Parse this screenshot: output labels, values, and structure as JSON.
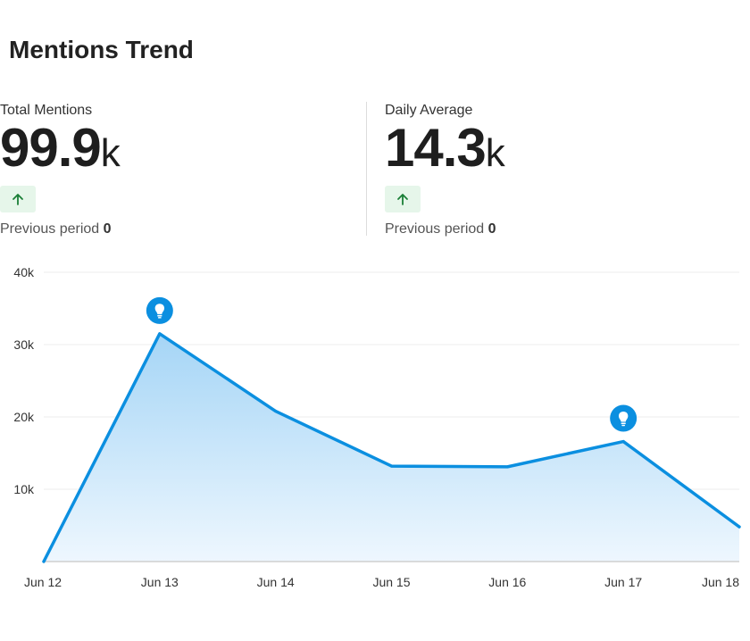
{
  "header": {
    "title": "Mentions Trend"
  },
  "stats": [
    {
      "label": "Total Mentions",
      "value": "99.9",
      "unit": "k",
      "trend_icon": "arrow-up-icon",
      "previous_label": "Previous period",
      "previous_value": "0"
    },
    {
      "label": "Daily Average",
      "value": "14.3",
      "unit": "k",
      "trend_icon": "arrow-up-icon",
      "previous_label": "Previous period",
      "previous_value": "0"
    }
  ],
  "colors": {
    "line": "#0b8fe0",
    "area_top": "#a5d5f6",
    "area_bottom": "#eef7fe",
    "trend_bg": "#e6f6ea",
    "trend_arrow": "#1a7f37"
  },
  "chart_data": {
    "type": "area",
    "x": [
      "Jun 12",
      "Jun 13",
      "Jun 14",
      "Jun 15",
      "Jun 16",
      "Jun 17",
      "Jun 18"
    ],
    "series": [
      {
        "values": [
          0,
          31500,
          20800,
          13200,
          13100,
          16600,
          4800
        ]
      }
    ],
    "ylim": [
      0,
      40000
    ],
    "y_ticks": [
      10000,
      20000,
      30000,
      40000
    ],
    "y_tick_labels": [
      "10k",
      "20k",
      "30k",
      "40k"
    ],
    "annotations": [
      {
        "x": "Jun 13",
        "icon": "lightbulb-icon"
      },
      {
        "x": "Jun 17",
        "icon": "lightbulb-icon"
      }
    ],
    "grid": true
  }
}
